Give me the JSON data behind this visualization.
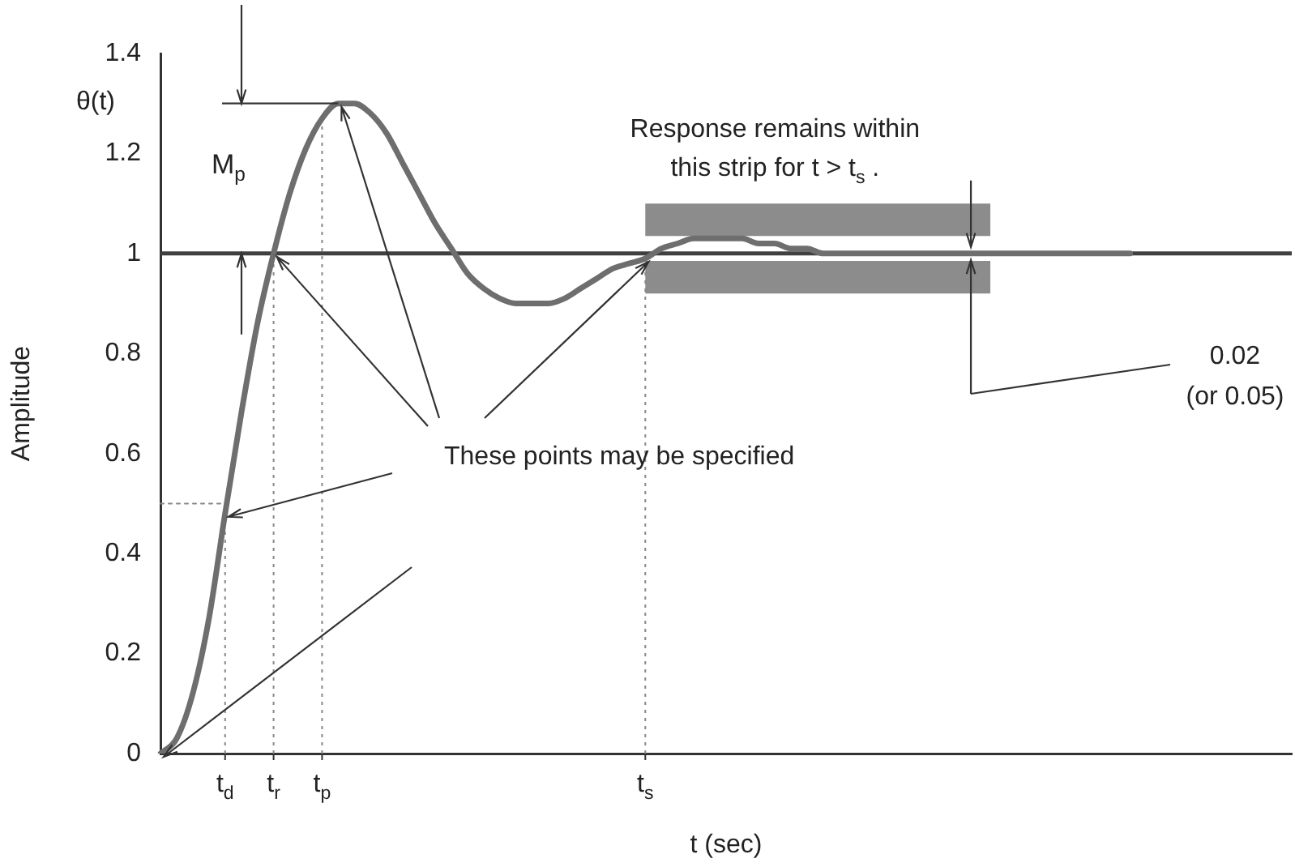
{
  "chart_data": {
    "type": "line",
    "categories": [
      null,
      null,
      null,
      null,
      "t$_{d}$",
      null,
      null,
      "t$_{r}$",
      null,
      null,
      "t$_{p}$",
      null,
      null,
      null,
      null,
      null,
      null,
      null,
      null,
      null,
      null,
      null,
      null,
      null,
      null,
      null,
      null,
      null,
      null,
      null,
      "t$_{s}$",
      null,
      null,
      null,
      null,
      null,
      null,
      null,
      null,
      null,
      null,
      null,
      null,
      null,
      null,
      null,
      null,
      null,
      null,
      null,
      null,
      null,
      null,
      null,
      null,
      null,
      null,
      null,
      null,
      null,
      null,
      null,
      null,
      null,
      null,
      null,
      null,
      null,
      null,
      null,
      null
    ],
    "series": [
      {
        "type": "line",
        "color": "#888888",
        "line_style": "dotted",
        "values": [
          0.5,
          0.5,
          0.5,
          0.5,
          0.5,
          null,
          null,
          null,
          null,
          null,
          null,
          null,
          null,
          null,
          null,
          null,
          null,
          null,
          null,
          null,
          null,
          null,
          null,
          null,
          null,
          null,
          null,
          null,
          null,
          null,
          null,
          null,
          null,
          null,
          null,
          null,
          null,
          null,
          null,
          null,
          null,
          null,
          null,
          null,
          null,
          null,
          null,
          null,
          null,
          null,
          null,
          null,
          null,
          null,
          null,
          null,
          null,
          null,
          null,
          null,
          null,
          null,
          null,
          null,
          null,
          null,
          null,
          null,
          null,
          null,
          null
        ]
      },
      {
        "color": "#6e6e6e",
        "values": [
          0,
          0.03,
          0.12,
          0.27,
          0.48,
          0.68,
          0.86,
          1.0,
          1.12,
          1.21,
          1.27,
          1.3,
          1.3,
          1.28,
          1.24,
          1.18,
          1.12,
          1.06,
          1.01,
          0.96,
          0.93,
          0.91,
          0.9,
          0.9,
          0.9,
          0.91,
          0.93,
          0.95,
          0.97,
          0.98,
          0.99,
          1.01,
          1.02,
          1.03,
          1.03,
          1.03,
          1.03,
          1.02,
          1.02,
          1.01,
          1.01,
          1.0,
          1.0,
          1.0,
          1.0,
          1.0,
          1.0,
          1.0,
          1.0,
          1.0,
          1.0,
          1.0,
          1.0,
          1.0,
          1.0,
          1.0,
          1.0,
          1.0,
          1.0,
          1.0,
          1.0,
          null,
          null,
          null,
          null,
          null,
          null,
          null,
          null,
          null,
          null
        ]
      }
    ],
    "xlabel": "t (sec)",
    "ylabel": "Amplitude",
    "ylim": [
      0,
      1.4
    ],
    "yticks": [
      0,
      0.2,
      0.4,
      0.6,
      0.8,
      1,
      1.2,
      1.4
    ],
    "grid": false,
    "legend": false,
    "marker": "none",
    "ref_lines": [
      {
        "axis": "y",
        "value": 1,
        "color": "#404040",
        "line_style": "solid"
      },
      {
        "axis": "x",
        "value": "t$_{d}$",
        "color": "#888888",
        "line_style": "dotted"
      },
      {
        "axis": "x",
        "value": "t$_{r}$",
        "color": "#888888",
        "line_style": "dotted"
      },
      {
        "axis": "x",
        "value": "t$_{p}$",
        "color": "#888888",
        "line_style": "dotted"
      },
      {
        "axis": "x",
        "value": "t$_{s}$",
        "color": "#888888",
        "line_style": "dotted"
      }
    ],
    "bands": [
      {
        "axis": "y",
        "from": 1.035,
        "to": 1.1,
        "color": "#8c8c8c"
      },
      {
        "axis": "y",
        "from": 0.92,
        "to": 0.985,
        "color": "#8c8c8c"
      }
    ],
    "annotations": [
      "θ(t)",
      "M$_{p}$",
      "Response remains within this strip for t > t$_{s}$ .",
      {
        "text": "These points may be specified",
        "x": "t$_{r}$",
        "y": 1
      },
      "0.02 (or 0.05)"
    ]
  }
}
